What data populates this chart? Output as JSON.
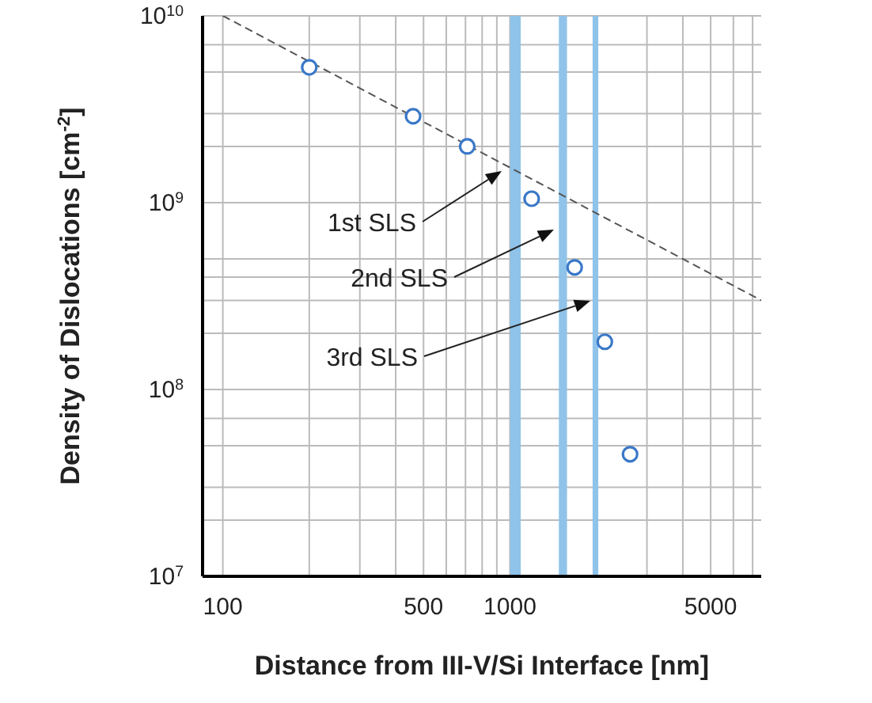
{
  "chart_data": {
    "type": "scatter",
    "xlabel": "Distance from III-V/Si Interface [nm]",
    "ylabel": "Density of Dislocations [cm$^{-2}$]",
    "log": "xy",
    "grid": true,
    "marker": "circle",
    "legend": false,
    "xlim": [
      85,
      7500
    ],
    "ylim": [
      10000000,
      10000000000
    ],
    "xticks": [
      100,
      {
        "value": 200,
        "label": null
      },
      {
        "value": 300,
        "label": null
      },
      {
        "value": 400,
        "label": null
      },
      500,
      {
        "value": 600,
        "label": null
      },
      {
        "value": 700,
        "label": null
      },
      {
        "value": 800,
        "label": null
      },
      {
        "value": 900,
        "label": null
      },
      1000,
      {
        "value": 3000,
        "label": null
      },
      {
        "value": 4000,
        "label": null
      },
      5000,
      {
        "value": 6000,
        "label": null
      },
      {
        "value": 7000,
        "label": null
      }
    ],
    "yticks": [
      {
        "value": 10000000,
        "label": "10$^{7}$"
      },
      {
        "value": 20000000,
        "label": null
      },
      {
        "value": 30000000,
        "label": null
      },
      {
        "value": 50000000,
        "label": null
      },
      {
        "value": 70000000,
        "label": null
      },
      {
        "value": 100000000,
        "label": "10$^{8}$"
      },
      {
        "value": 200000000,
        "label": null
      },
      {
        "value": 300000000,
        "label": null
      },
      {
        "value": 400000000,
        "label": null
      },
      {
        "value": 500000000,
        "label": null
      },
      {
        "value": 1000000000,
        "label": "10$^{9}$"
      },
      {
        "value": 2000000000,
        "label": null
      },
      {
        "value": 3000000000,
        "label": null
      },
      {
        "value": 5000000000,
        "label": null
      },
      {
        "value": 7000000000,
        "label": null
      },
      {
        "value": 10000000000,
        "label": "10$^{10}$"
      }
    ],
    "series": [
      {
        "color": "#3a78c8",
        "x": [
          200,
          460,
          710,
          1190,
          1680,
          2140,
          2620
        ],
        "values": [
          5300000000,
          2900000000,
          2000000000,
          1050000000,
          450000000,
          180000000,
          45000000
        ]
      },
      {
        "type": "line",
        "color": "#555555",
        "line_style": "dashed",
        "marker": "none",
        "x": [
          100,
          7500
        ],
        "values": [
          10000000000,
          300000000
        ]
      }
    ],
    "bands": [
      {
        "axis": "x",
        "from": 1000,
        "to": 1090,
        "color": "#8fc3ea"
      },
      {
        "axis": "x",
        "from": 1480,
        "to": 1580,
        "color": "#8fc3ea"
      },
      {
        "axis": "x",
        "from": 1940,
        "to": 2030,
        "color": "#8fc3ea"
      }
    ],
    "annotations": [
      "1st SLS",
      "2nd SLS",
      "3rd SLS"
    ]
  }
}
